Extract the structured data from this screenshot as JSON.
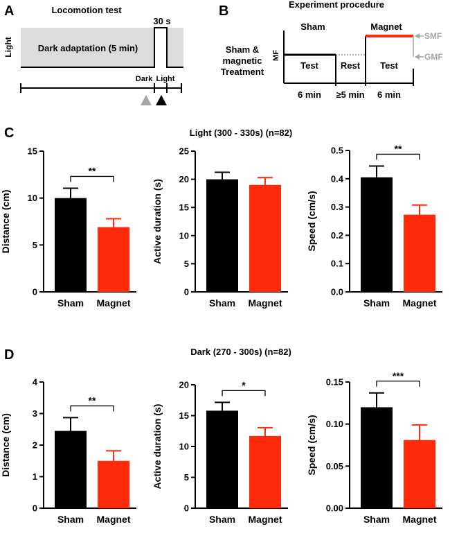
{
  "colors": {
    "sham": "#000000",
    "magnet": "#ff2a0a",
    "gray": "#a6a6a6",
    "dark_zone": "#dcdcdc"
  },
  "panels": {
    "A": {
      "letter": "A",
      "title": "Locomotion test",
      "light_label": "Light",
      "dark_adaptation_label": "Dark adaptation (5 min)",
      "pulse_label": "30 s",
      "dark_tick_label": "Dark",
      "light_tick_label": "Light"
    },
    "B": {
      "letter": "B",
      "title": "Experiment procedure",
      "sham_label": "Sham",
      "magnet_label": "Magnet",
      "treatment_label_1": "Sham &",
      "treatment_label_2": "magnetic",
      "treatment_label_3": "Treatment",
      "mf_label": "MF",
      "smf_label": "SMF",
      "gmf_label": "GMF",
      "phases": [
        "Test",
        "Rest",
        "Test"
      ],
      "durations": [
        "6 min",
        "≥5 min",
        "6 min"
      ]
    },
    "C": {
      "letter": "C",
      "title": "Light (300 - 330s) (n=82)"
    },
    "D": {
      "letter": "D",
      "title": "Dark (270 - 300s) (n=82)"
    }
  },
  "chart_data": [
    {
      "panel": "C",
      "type": "bar",
      "categories": [
        "Sham",
        "Magnet"
      ],
      "values": [
        10.0,
        6.9
      ],
      "errors": [
        1.05,
        0.9
      ],
      "ylabel": "Distance (cm)",
      "ylim": [
        0,
        15
      ],
      "ticks": [
        0,
        5,
        10,
        15
      ],
      "tick_labels": [
        "0",
        "5",
        "10",
        "15"
      ],
      "significance": "**"
    },
    {
      "panel": "C",
      "type": "bar",
      "categories": [
        "Sham",
        "Magnet"
      ],
      "values": [
        20.0,
        19.0
      ],
      "errors": [
        1.25,
        1.3
      ],
      "ylabel": "Active duration (s)",
      "ylim": [
        0,
        25
      ],
      "ticks": [
        0,
        5,
        10,
        15,
        20,
        25
      ],
      "tick_labels": [
        "0",
        "5",
        "10",
        "15",
        "20",
        "25"
      ],
      "significance": ""
    },
    {
      "panel": "C",
      "type": "bar",
      "categories": [
        "Sham",
        "Magnet"
      ],
      "values": [
        0.405,
        0.273
      ],
      "errors": [
        0.04,
        0.034
      ],
      "ylabel": "Speed (cm/s)",
      "ylim": [
        0,
        0.5
      ],
      "ticks": [
        0,
        0.1,
        0.2,
        0.3,
        0.4,
        0.5
      ],
      "tick_labels": [
        "0.0",
        "0.1",
        "0.2",
        "0.3",
        "0.4",
        "0.5"
      ],
      "significance": "**"
    },
    {
      "panel": "D",
      "type": "bar",
      "categories": [
        "Sham",
        "Magnet"
      ],
      "values": [
        2.45,
        1.5
      ],
      "errors": [
        0.42,
        0.32
      ],
      "ylabel": "Distance (cm)",
      "ylim": [
        0,
        4
      ],
      "ticks": [
        0,
        1,
        2,
        3,
        4
      ],
      "tick_labels": [
        "0",
        "1",
        "2",
        "3",
        "4"
      ],
      "significance": "**"
    },
    {
      "panel": "D",
      "type": "bar",
      "categories": [
        "Sham",
        "Magnet"
      ],
      "values": [
        15.8,
        11.7
      ],
      "errors": [
        1.35,
        1.35
      ],
      "ylabel": "Active duration (s)",
      "ylim": [
        0,
        20
      ],
      "ticks": [
        0,
        5,
        10,
        15,
        20
      ],
      "tick_labels": [
        "0",
        "5",
        "10",
        "15",
        "20"
      ],
      "significance": "*"
    },
    {
      "panel": "D",
      "type": "bar",
      "categories": [
        "Sham",
        "Magnet"
      ],
      "values": [
        0.12,
        0.081
      ],
      "errors": [
        0.017,
        0.018
      ],
      "ylabel": "Speed (cm/s)",
      "ylim": [
        0,
        0.15
      ],
      "ticks": [
        0,
        0.05,
        0.1,
        0.15
      ],
      "tick_labels": [
        "0.00",
        "0.05",
        "0.10",
        "0.15"
      ],
      "significance": "***"
    }
  ]
}
